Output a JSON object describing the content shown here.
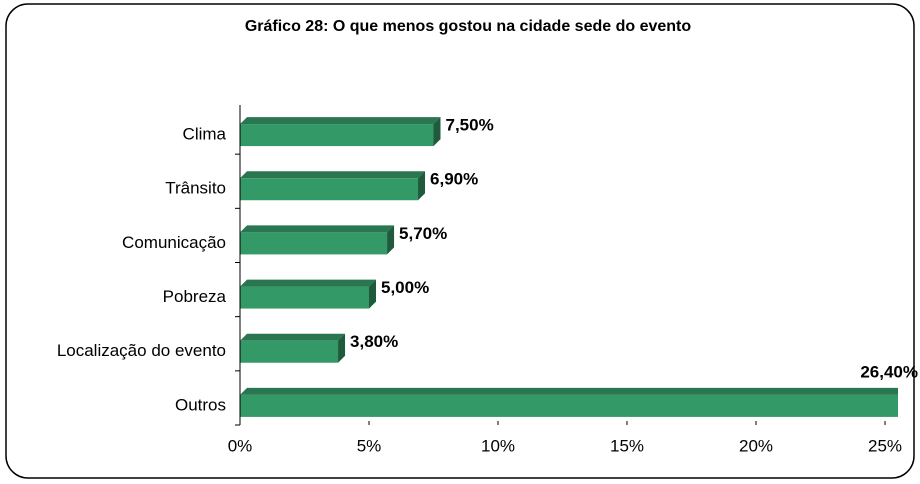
{
  "chart_data": {
    "type": "bar",
    "orientation": "horizontal",
    "title": "Gráfico 28: O que menos gostou na cidade sede do evento",
    "categories": [
      "Clima",
      "Trânsito",
      "Comunicação",
      "Pobreza",
      "Localização do evento",
      "Outros"
    ],
    "values": [
      7.5,
      6.9,
      5.7,
      5.0,
      3.8,
      26.4
    ],
    "value_labels": [
      "7,50%",
      "6,90%",
      "5,70%",
      "5,00%",
      "3,80%",
      "26,40%"
    ],
    "color": "#339966",
    "xlim": [
      0,
      25
    ],
    "xticks": [
      {
        "value": 0,
        "label": "0%"
      },
      {
        "value": 5,
        "label": "5%"
      },
      {
        "value": 10,
        "label": "10%"
      },
      {
        "value": 15,
        "label": "15%"
      },
      {
        "value": 20,
        "label": "20%"
      },
      {
        "value": 25,
        "label": "25%"
      }
    ],
    "grid": false
  }
}
